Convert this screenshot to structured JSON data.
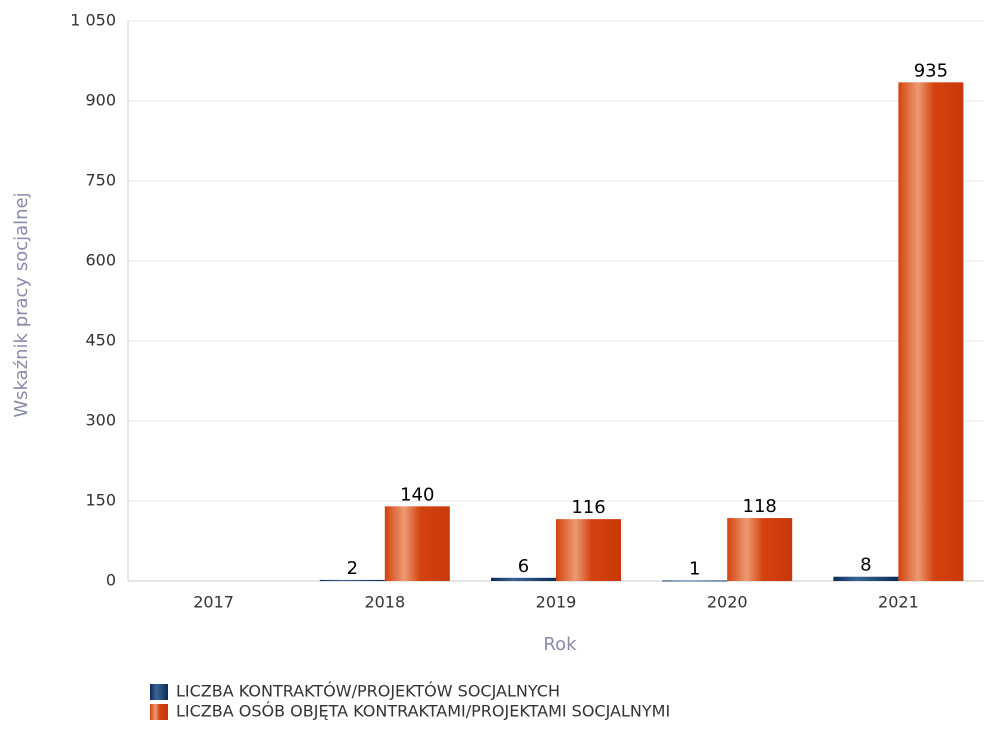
{
  "chart_data": {
    "type": "bar",
    "categories": [
      "2017",
      "2018",
      "2019",
      "2020",
      "2021"
    ],
    "series": [
      {
        "name": "LICZBA KONTRAKTÓW/PROJEKTÓW SOCJALNYCH",
        "color": "#0d3a6b",
        "values": [
          null,
          2,
          6,
          1,
          8
        ]
      },
      {
        "name": "LICZBA OSÓB OBJĘTA KONTRAKTAMI/PROJEKTAMI SOCJALNYMI",
        "color": "#d9400f",
        "values": [
          null,
          140,
          116,
          118,
          935
        ]
      }
    ],
    "xlabel": "Rok",
    "ylabel": "Wskaźnik pracy socjalnej",
    "ylim": [
      0,
      1050
    ],
    "yticks": [
      0,
      150,
      300,
      450,
      600,
      750,
      900,
      {
        "value": 1050,
        "label": "1 050"
      }
    ],
    "grid": true,
    "legend": "bottom"
  }
}
